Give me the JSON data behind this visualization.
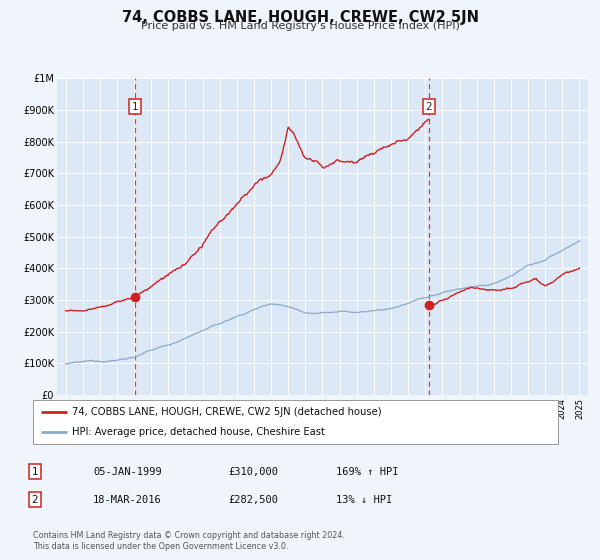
{
  "title": "74, COBBS LANE, HOUGH, CREWE, CW2 5JN",
  "subtitle": "Price paid vs. HM Land Registry's House Price Index (HPI)",
  "bg_color": "#f0f5fb",
  "plot_bg_color": "#dce8f5",
  "red_line_color": "#cc2222",
  "blue_line_color": "#88aacc",
  "dashed_line_color": "#cc2222",
  "marker1_x": 1999.04,
  "marker1_y": 310000,
  "marker2_x": 2016.21,
  "marker2_y": 282500,
  "legend_label1": "74, COBBS LANE, HOUGH, CREWE, CW2 5JN (detached house)",
  "legend_label2": "HPI: Average price, detached house, Cheshire East",
  "table_row1": [
    "1",
    "05-JAN-1999",
    "£310,000",
    "169% ↑ HPI"
  ],
  "table_row2": [
    "2",
    "18-MAR-2016",
    "£282,500",
    "13% ↓ HPI"
  ],
  "footer1": "Contains HM Land Registry data © Crown copyright and database right 2024.",
  "footer2": "This data is licensed under the Open Government Licence v3.0.",
  "ylim": [
    0,
    1000000
  ],
  "xlim": [
    1994.5,
    2025.5
  ]
}
